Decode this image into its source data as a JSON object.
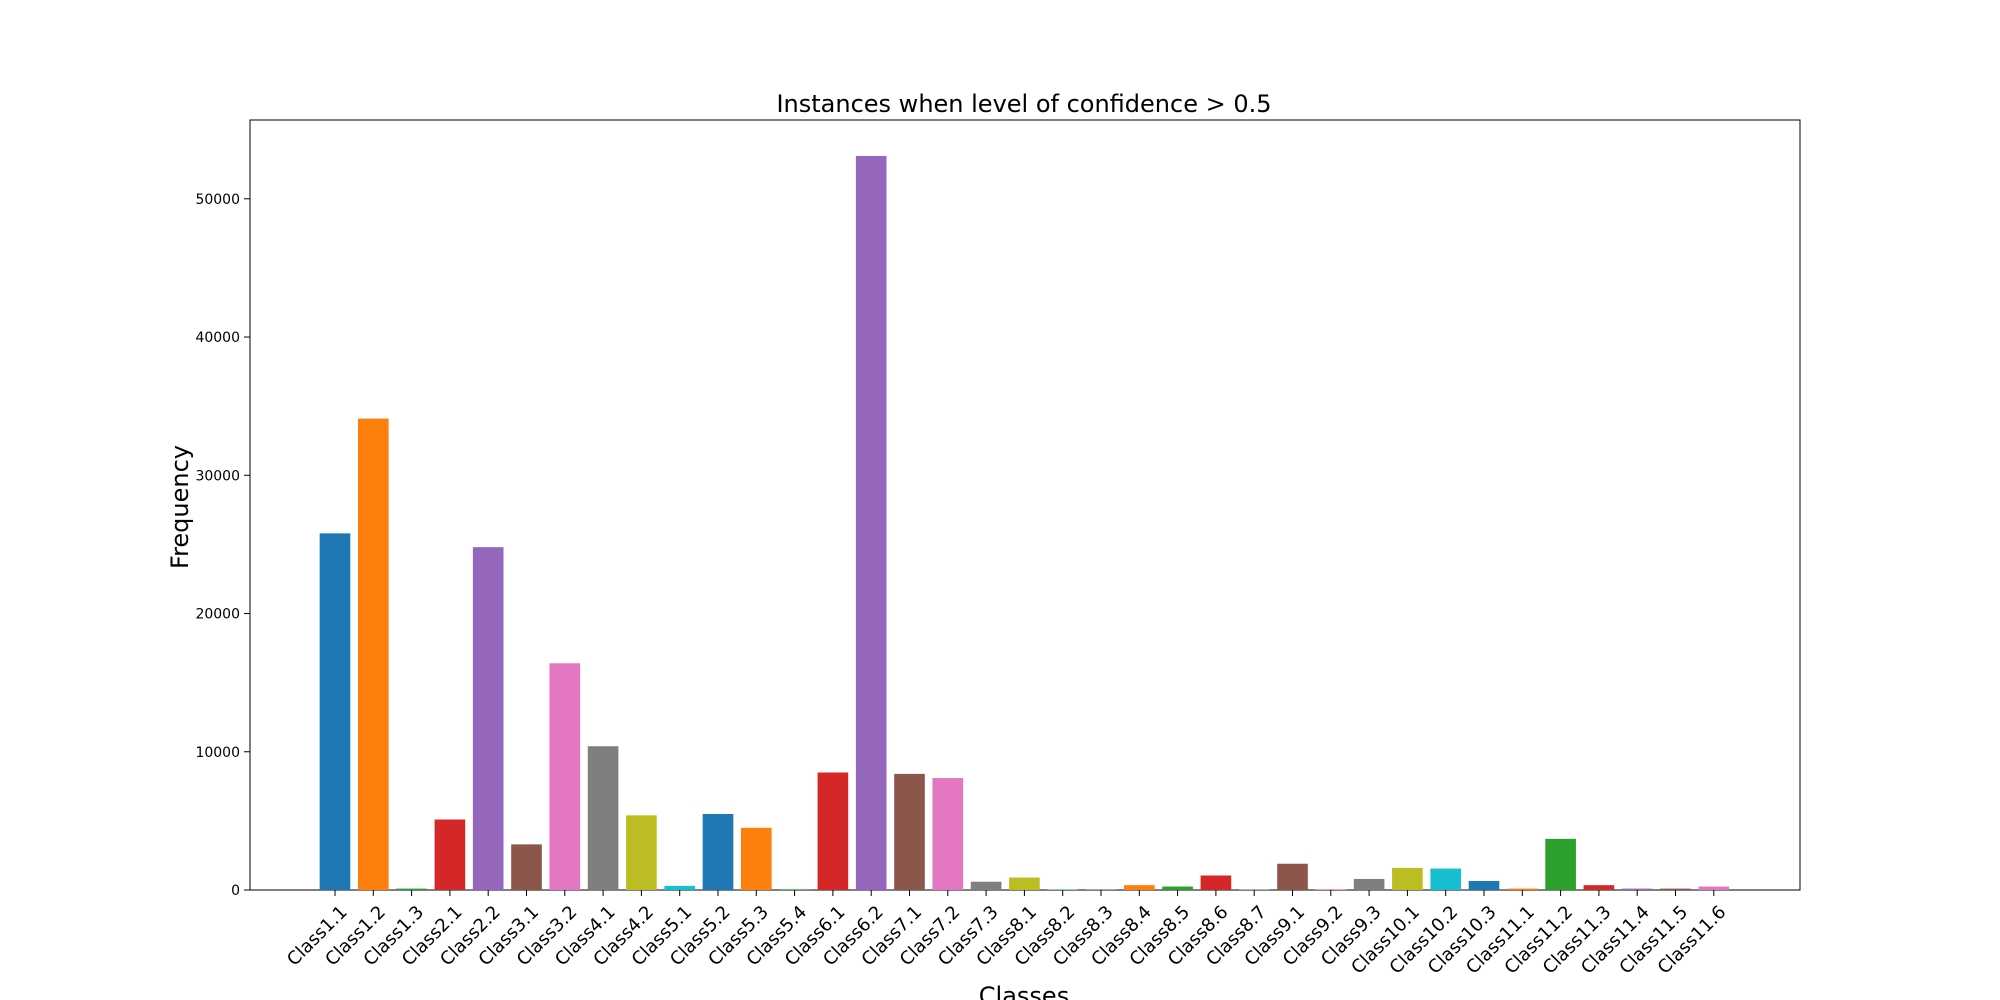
{
  "chart_data": {
    "type": "bar",
    "title": "Instances when level of confidence > 0.5",
    "xlabel": "Classes",
    "ylabel": "Frequency",
    "ylim": [
      0,
      55700
    ],
    "yticks": [
      0,
      10000,
      20000,
      30000,
      40000,
      50000
    ],
    "grid": false,
    "categories": [
      "Class1.1",
      "Class1.2",
      "Class1.3",
      "Class2.1",
      "Class2.2",
      "Class3.1",
      "Class3.2",
      "Class4.1",
      "Class4.2",
      "Class5.1",
      "Class5.2",
      "Class5.3",
      "Class5.4",
      "Class6.1",
      "Class6.2",
      "Class7.1",
      "Class7.2",
      "Class7.3",
      "Class8.1",
      "Class8.2",
      "Class8.3",
      "Class8.4",
      "Class8.5",
      "Class8.6",
      "Class8.7",
      "Class9.1",
      "Class9.2",
      "Class9.3",
      "Class10.1",
      "Class10.2",
      "Class10.3",
      "Class11.1",
      "Class11.2",
      "Class11.3",
      "Class11.4",
      "Class11.5",
      "Class11.6"
    ],
    "values": [
      25800,
      34100,
      100,
      5100,
      24800,
      3300,
      16400,
      10400,
      5400,
      300,
      5500,
      4500,
      50,
      8500,
      53100,
      8400,
      8100,
      600,
      900,
      30,
      30,
      350,
      250,
      1050,
      30,
      1900,
      50,
      800,
      1600,
      1550,
      650,
      100,
      3700,
      350,
      100,
      100,
      250
    ],
    "colors": [
      "#1f77b4",
      "#ff7f0e",
      "#2ca02c",
      "#d62728",
      "#9467bd",
      "#8c564b",
      "#e377c2",
      "#7f7f7f",
      "#bcbd22",
      "#17becf",
      "#1f77b4",
      "#ff7f0e",
      "#2ca02c",
      "#d62728",
      "#9467bd",
      "#8c564b",
      "#e377c2",
      "#7f7f7f",
      "#bcbd22",
      "#17becf",
      "#1f77b4",
      "#ff7f0e",
      "#2ca02c",
      "#d62728",
      "#9467bd",
      "#8c564b",
      "#e377c2",
      "#7f7f7f",
      "#bcbd22",
      "#17becf",
      "#1f77b4",
      "#ff7f0e",
      "#2ca02c",
      "#d62728",
      "#9467bd",
      "#8c564b",
      "#e377c2"
    ]
  }
}
